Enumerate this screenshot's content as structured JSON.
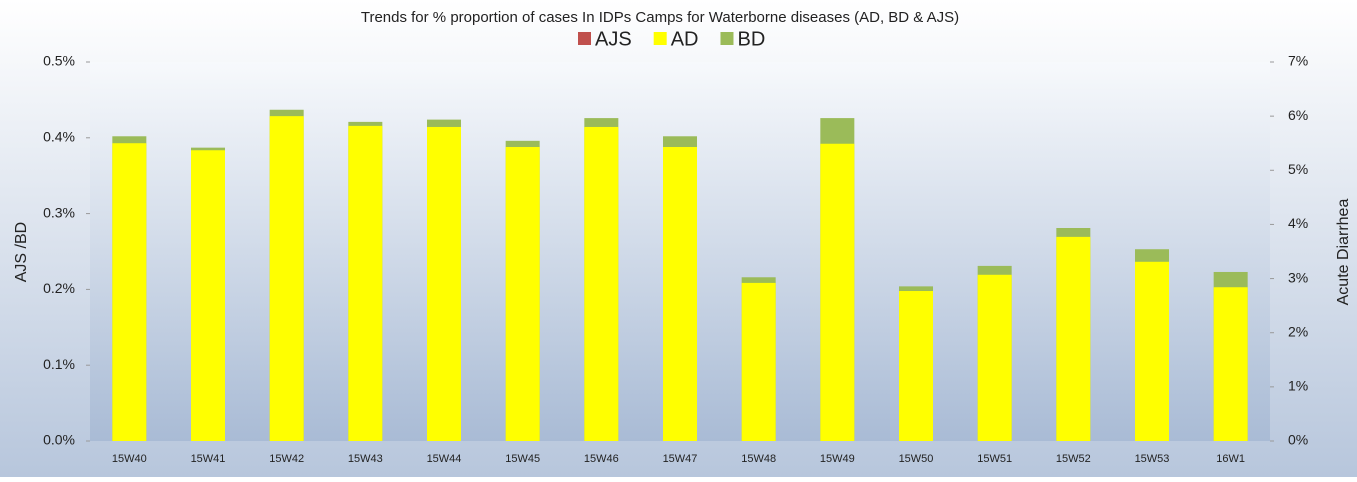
{
  "chart_data": {
    "type": "bar",
    "title": "Trends for % proportion of cases In IDPs Camps for Waterborne diseases (AD, BD & AJS)",
    "categories": [
      "15W40",
      "15W41",
      "15W42",
      "15W43",
      "15W44",
      "15W45",
      "15W46",
      "15W47",
      "15W48",
      "15W49",
      "15W50",
      "15W51",
      "15W52",
      "15W53",
      "16W1"
    ],
    "series": [
      {
        "name": "AJS",
        "color": "#c0504d",
        "axis": "y",
        "values": [
          0,
          0,
          0,
          0,
          0,
          0,
          0,
          0,
          0,
          0,
          0,
          0,
          0,
          0,
          0
        ]
      },
      {
        "name": "AD",
        "color": "#ffff00",
        "axis": "y2",
        "values": [
          5.5,
          5.37,
          6.0,
          5.82,
          5.8,
          5.43,
          5.8,
          5.43,
          2.92,
          5.49,
          2.77,
          3.07,
          3.77,
          3.31,
          2.84
        ]
      },
      {
        "name": "BD",
        "color": "#9bbb59",
        "axis": "y",
        "values": [
          0.402,
          0.387,
          0.437,
          0.421,
          0.424,
          0.396,
          0.426,
          0.402,
          0.216,
          0.426,
          0.204,
          0.231,
          0.281,
          0.253,
          0.223
        ]
      }
    ],
    "ylabel": "AJS /BD",
    "y2label": "Acute Diarrhea",
    "ylim": [
      0,
      0.5
    ],
    "yticks": [
      {
        "value": 0,
        "label": "0.0%"
      },
      {
        "value": 0.1,
        "label": "0.1%"
      },
      {
        "value": 0.2,
        "label": "0.2%"
      },
      {
        "value": 0.3,
        "label": "0.3%"
      },
      {
        "value": 0.4,
        "label": "0.4%"
      },
      {
        "value": 0.5,
        "label": "0.5%"
      }
    ],
    "y2lim": [
      0,
      7
    ],
    "y2ticks": [
      {
        "value": 0,
        "label": "0%"
      },
      {
        "value": 1,
        "label": "1%"
      },
      {
        "value": 2,
        "label": "2%"
      },
      {
        "value": 3,
        "label": "3%"
      },
      {
        "value": 4,
        "label": "4%"
      },
      {
        "value": 5,
        "label": "5%"
      },
      {
        "value": 6,
        "label": "6%"
      },
      {
        "value": 7,
        "label": "7%"
      }
    ],
    "legend": "top"
  }
}
